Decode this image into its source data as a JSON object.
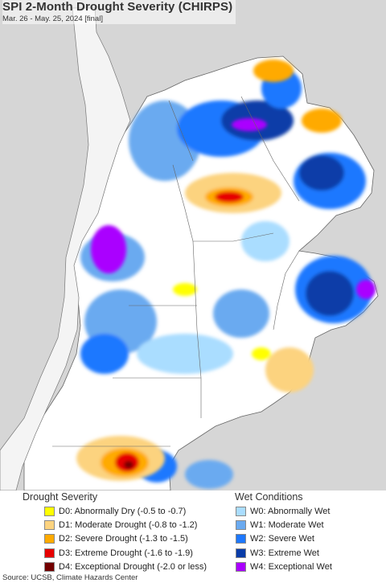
{
  "header": {
    "title": "SPI 2-Month Drought Severity (CHIRPS)",
    "subtitle": "Mar. 26 - May. 25, 2024 [final]"
  },
  "legend": {
    "drought": {
      "heading": "Drought Severity",
      "items": [
        {
          "label": "D0: Abnormally Dry (-0.5 to -0.7)",
          "color": "#ffff00"
        },
        {
          "label": "D1: Moderate Drought (-0.8 to -1.2)",
          "color": "#fcd37f"
        },
        {
          "label": "D2: Severe Drought (-1.3 to -1.5)",
          "color": "#ffaa00"
        },
        {
          "label": "D3: Extreme Drought (-1.6 to -1.9)",
          "color": "#e60000"
        },
        {
          "label": "D4: Exceptional Drought (-2.0 or less)",
          "color": "#730000"
        }
      ]
    },
    "wet": {
      "heading": "Wet Conditions",
      "items": [
        {
          "label": "W0: Abnormally Wet",
          "color": "#aaddff"
        },
        {
          "label": "W1: Moderate Wet",
          "color": "#6aaaf0"
        },
        {
          "label": "W2: Severe Wet",
          "color": "#1e78ff"
        },
        {
          "label": "W3: Extreme Wet",
          "color": "#0a3ca8"
        },
        {
          "label": "W4: Exceptional Wet",
          "color": "#aa00ff"
        }
      ]
    }
  },
  "footer": {
    "source": "Source: UCSB, Climate Hazards Center"
  }
}
